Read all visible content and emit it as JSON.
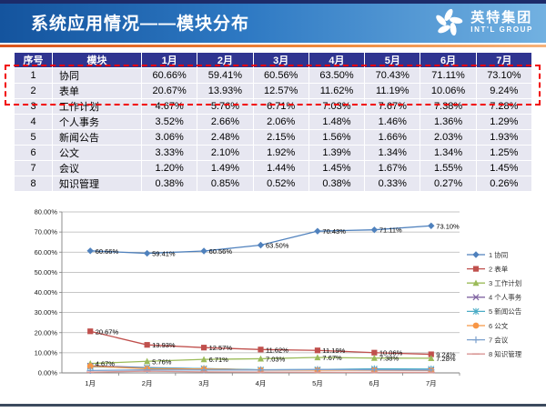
{
  "header": {
    "title": "系统应用情况——模块分布",
    "logo_cn": "英特集团",
    "logo_en": "INT'L GROUP"
  },
  "table": {
    "columns": [
      "序号",
      "模块",
      "1月",
      "2月",
      "3月",
      "4月",
      "5月",
      "6月",
      "7月"
    ],
    "rows": [
      {
        "no": "1",
        "module": "协同",
        "values": [
          "60.66%",
          "59.41%",
          "60.56%",
          "63.50%",
          "70.43%",
          "71.11%",
          "73.10%"
        ]
      },
      {
        "no": "2",
        "module": "表单",
        "values": [
          "20.67%",
          "13.93%",
          "12.57%",
          "11.62%",
          "11.19%",
          "10.06%",
          "9.24%"
        ]
      },
      {
        "no": "3",
        "module": "工作计划",
        "values": [
          "4.67%",
          "5.76%",
          "6.71%",
          "7.03%",
          "7.67%",
          "7.38%",
          "7.28%"
        ]
      },
      {
        "no": "4",
        "module": "个人事务",
        "values": [
          "3.52%",
          "2.66%",
          "2.06%",
          "1.48%",
          "1.46%",
          "1.36%",
          "1.29%"
        ]
      },
      {
        "no": "5",
        "module": "新闻公告",
        "values": [
          "3.06%",
          "2.48%",
          "2.15%",
          "1.56%",
          "1.66%",
          "2.03%",
          "1.93%"
        ]
      },
      {
        "no": "6",
        "module": "公文",
        "values": [
          "3.33%",
          "2.10%",
          "1.92%",
          "1.39%",
          "1.34%",
          "1.34%",
          "1.25%"
        ]
      },
      {
        "no": "7",
        "module": "会议",
        "values": [
          "1.20%",
          "1.49%",
          "1.44%",
          "1.45%",
          "1.67%",
          "1.55%",
          "1.45%"
        ]
      },
      {
        "no": "8",
        "module": "知识管理",
        "values": [
          "0.38%",
          "0.85%",
          "0.52%",
          "0.38%",
          "0.33%",
          "0.27%",
          "0.26%"
        ]
      }
    ],
    "highlight_color": "#f20000"
  },
  "chart_data": {
    "type": "line",
    "categories": [
      "1月",
      "2月",
      "3月",
      "4月",
      "5月",
      "6月",
      "7月"
    ],
    "series": [
      {
        "name": "1 协同",
        "color": "#4F81BD",
        "marker": "diamond",
        "labels": true,
        "values": [
          60.66,
          59.41,
          60.56,
          63.5,
          70.43,
          71.11,
          73.1
        ]
      },
      {
        "name": "2 表单",
        "color": "#C0504D",
        "marker": "square",
        "labels": true,
        "values": [
          20.67,
          13.93,
          12.57,
          11.62,
          11.19,
          10.06,
          9.24
        ]
      },
      {
        "name": "3 工作计划",
        "color": "#9BBB59",
        "marker": "triangle",
        "labels": true,
        "values": [
          4.67,
          5.76,
          6.71,
          7.03,
          7.67,
          7.38,
          7.28
        ]
      },
      {
        "name": "4 个人事务",
        "color": "#8064A2",
        "marker": "x",
        "labels": false,
        "values": [
          3.52,
          2.66,
          2.06,
          1.48,
          1.46,
          1.36,
          1.29
        ]
      },
      {
        "name": "5 新闻公告",
        "color": "#4BACC6",
        "marker": "asterisk",
        "labels": false,
        "values": [
          3.06,
          2.48,
          2.15,
          1.56,
          1.66,
          2.03,
          1.93
        ]
      },
      {
        "name": "6 公文",
        "color": "#F79646",
        "marker": "circle",
        "labels": false,
        "values": [
          3.33,
          2.1,
          1.92,
          1.39,
          1.34,
          1.34,
          1.25
        ]
      },
      {
        "name": "7 会议",
        "color": "#7BA0CD",
        "marker": "plus",
        "labels": false,
        "values": [
          1.2,
          1.49,
          1.44,
          1.45,
          1.67,
          1.55,
          1.45
        ]
      },
      {
        "name": "8 知识管理",
        "color": "#D99694",
        "marker": "dash",
        "labels": false,
        "values": [
          0.38,
          0.85,
          0.52,
          0.38,
          0.33,
          0.27,
          0.26
        ]
      }
    ],
    "title": "",
    "xlabel": "",
    "ylabel": "",
    "ylim": [
      0,
      80
    ],
    "ytick_step": 10,
    "ytick_format": "0.00%",
    "grid": true,
    "legend_position": "right"
  }
}
